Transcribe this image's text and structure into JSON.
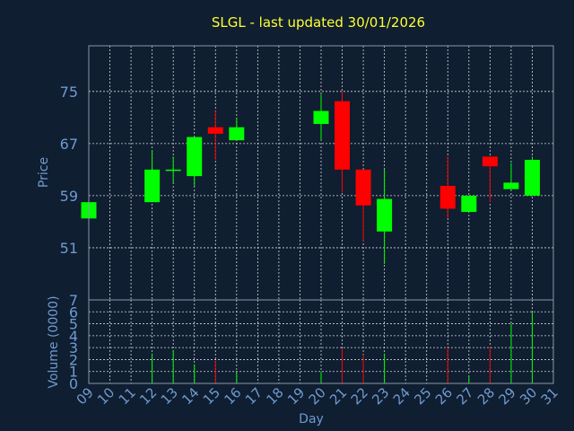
{
  "chart_data": {
    "type": "candlestick",
    "title": "SLGL - last updated 30/01/2026",
    "xlabel": "Day",
    "ylabel_price": "Price",
    "ylabel_volume": "Volume (0000)",
    "price_ylim": [
      43,
      82
    ],
    "price_ticks": [
      51,
      59,
      67,
      75
    ],
    "volume_ylim": [
      0,
      7
    ],
    "volume_ticks": [
      0,
      1,
      2,
      3,
      4,
      5,
      6,
      7
    ],
    "x_ticks": [
      "09",
      "10",
      "11",
      "12",
      "13",
      "14",
      "15",
      "16",
      "17",
      "18",
      "19",
      "20",
      "21",
      "22",
      "23",
      "24",
      "25",
      "26",
      "27",
      "28",
      "29",
      "30",
      "31"
    ],
    "grid": true,
    "up_color": "#00ff00",
    "down_color": "#ff0000",
    "candles": [
      {
        "day": "09",
        "open": 55.5,
        "high": 58.0,
        "low": 55.5,
        "close": 58.0,
        "volume": 0.1
      },
      {
        "day": "12",
        "open": 58.0,
        "high": 66.0,
        "low": 58.0,
        "close": 63.0,
        "volume": 2.5
      },
      {
        "day": "13",
        "open": 63.0,
        "high": 65.0,
        "low": 61.0,
        "close": 63.0,
        "volume": 2.8
      },
      {
        "day": "14",
        "open": 62.0,
        "high": 68.0,
        "low": 60.5,
        "close": 68.0,
        "volume": 1.6
      },
      {
        "day": "15",
        "open": 69.5,
        "high": 72.0,
        "low": 64.5,
        "close": 68.5,
        "volume": 1.9
      },
      {
        "day": "16",
        "open": 67.5,
        "high": 71.0,
        "low": 67.5,
        "close": 69.5,
        "volume": 0.9
      },
      {
        "day": "20",
        "open": 70.0,
        "high": 74.5,
        "low": 67.5,
        "close": 72.0,
        "volume": 1.0
      },
      {
        "day": "21",
        "open": 73.5,
        "high": 75.0,
        "low": 59.5,
        "close": 63.0,
        "volume": 2.9
      },
      {
        "day": "22",
        "open": 63.0,
        "high": 63.0,
        "low": 52.0,
        "close": 57.5,
        "volume": 2.4
      },
      {
        "day": "23",
        "open": 53.5,
        "high": 63.0,
        "low": 48.5,
        "close": 58.5,
        "volume": 2.5
      },
      {
        "day": "26",
        "open": 60.5,
        "high": 65.0,
        "low": 55.5,
        "close": 57.0,
        "volume": 3.0
      },
      {
        "day": "27",
        "open": 56.5,
        "high": 59.0,
        "low": 56.5,
        "close": 59.0,
        "volume": 0.6
      },
      {
        "day": "28",
        "open": 65.0,
        "high": 65.0,
        "low": 58.0,
        "close": 63.5,
        "volume": 3.1
      },
      {
        "day": "29",
        "open": 60.0,
        "high": 64.0,
        "low": 60.0,
        "close": 61.0,
        "volume": 5.0
      },
      {
        "day": "30",
        "open": 59.0,
        "high": 65.0,
        "low": 59.0,
        "close": 64.5,
        "volume": 6.0
      }
    ]
  }
}
